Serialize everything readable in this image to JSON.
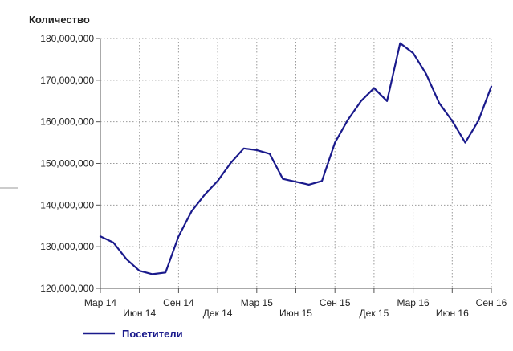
{
  "chart_data": {
    "type": "line",
    "ylabel": "Количество",
    "ylim": [
      120000000,
      180000000
    ],
    "ytick_values": [
      120000000,
      130000000,
      140000000,
      150000000,
      160000000,
      170000000,
      180000000
    ],
    "ytick_labels": [
      "120,000,000",
      "130,000,000",
      "140,000,000",
      "150,000,000",
      "160,000,000",
      "170,000,000",
      "180,000,000"
    ],
    "xlim": [
      "2014-03",
      "2016-09"
    ],
    "xtick_positions": [
      "2014-03",
      "2014-06",
      "2014-09",
      "2014-12",
      "2015-03",
      "2015-06",
      "2015-09",
      "2015-12",
      "2016-03",
      "2016-06",
      "2016-09"
    ],
    "xtick_labels": [
      "Мар 14",
      "Июн 14",
      "Сен 14",
      "Дек 14",
      "Мар 15",
      "Июн 15",
      "Сен 15",
      "Дек 15",
      "Мар 16",
      "Июн 16",
      "Сен 16"
    ],
    "grid": true,
    "legend_position": "bottom-left",
    "series": [
      {
        "name": "Посетители",
        "color": "#1a1a8c",
        "x": [
          "2014-03",
          "2014-04",
          "2014-05",
          "2014-06",
          "2014-07",
          "2014-08",
          "2014-09",
          "2014-10",
          "2014-11",
          "2014-12",
          "2015-01",
          "2015-02",
          "2015-03",
          "2015-04",
          "2015-05",
          "2015-06",
          "2015-07",
          "2015-08",
          "2015-09",
          "2015-10",
          "2015-11",
          "2015-12",
          "2016-01",
          "2016-02",
          "2016-03",
          "2016-04",
          "2016-05",
          "2016-06",
          "2016-07",
          "2016-08",
          "2016-09"
        ],
        "values": [
          132500000,
          131000000,
          127000000,
          124200000,
          123400000,
          123800000,
          132500000,
          138500000,
          142500000,
          145800000,
          150100000,
          153600000,
          153200000,
          152300000,
          146300000,
          145600000,
          144900000,
          145800000,
          155000000,
          160500000,
          165000000,
          168100000,
          165000000,
          178900000,
          176500000,
          171500000,
          164500000,
          160200000,
          155000000,
          160200000,
          168500000
        ]
      }
    ]
  }
}
